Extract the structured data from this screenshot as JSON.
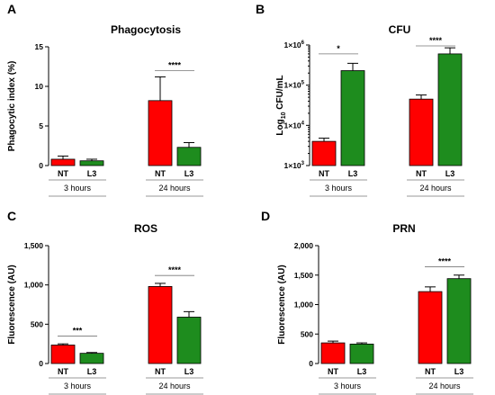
{
  "chart_data": [
    {
      "panel": "A",
      "type": "bar",
      "title": "Phagocytosis",
      "ylabel": "Phagocytic index (%)",
      "ylim": [
        0,
        15
      ],
      "yticks": [
        "0",
        "5",
        "10",
        "15"
      ],
      "ytick_values": [
        0,
        5,
        10,
        15
      ],
      "scale": "linear",
      "categories": [
        "NT",
        "L3",
        "NT",
        "L3"
      ],
      "groups": [
        "3 hours",
        "24 hours"
      ],
      "values": [
        0.8,
        0.6,
        8.2,
        2.3
      ],
      "errors": [
        0.4,
        0.2,
        3.0,
        0.6
      ],
      "colors": [
        "#ff0000",
        "#1e8c1e",
        "#ff0000",
        "#1e8c1e"
      ],
      "significance": [
        {
          "between": [
            2,
            3
          ],
          "label": "****",
          "y": 12.0
        }
      ]
    },
    {
      "panel": "B",
      "type": "bar",
      "title": "CFU",
      "ylabel_parts": [
        "Log",
        "10",
        " CFU/mL"
      ],
      "ylim": [
        1000,
        1000000
      ],
      "scale": "log",
      "ytick_values": [
        1000,
        10000,
        100000,
        1000000
      ],
      "yticks": [
        [
          "1×10",
          "3"
        ],
        [
          "1×10",
          "4"
        ],
        [
          "1×10",
          "5"
        ],
        [
          "1×10",
          "6"
        ]
      ],
      "categories": [
        "NT",
        "L3",
        "NT",
        "L3"
      ],
      "groups": [
        "3 hours",
        "24 hours"
      ],
      "values": [
        4000,
        230000,
        45000,
        600000
      ],
      "errors": [
        800,
        120000,
        12000,
        250000
      ],
      "colors": [
        "#ff0000",
        "#1e8c1e",
        "#ff0000",
        "#1e8c1e"
      ],
      "significance": [
        {
          "between": [
            0,
            1
          ],
          "label": "*",
          "y": 600000
        },
        {
          "between": [
            2,
            3
          ],
          "label": "****",
          "y": 950000
        }
      ]
    },
    {
      "panel": "C",
      "type": "bar",
      "title": "ROS",
      "ylabel": "Fluorescence (AU)",
      "ylim": [
        0,
        1500
      ],
      "yticks": [
        "0",
        "500",
        "1,000",
        "1,500"
      ],
      "ytick_values": [
        0,
        500,
        1000,
        1500
      ],
      "scale": "linear",
      "categories": [
        "NT",
        "L3",
        "NT",
        "L3"
      ],
      "groups": [
        "3 hours",
        "24 hours"
      ],
      "values": [
        235,
        130,
        980,
        590
      ],
      "errors": [
        15,
        10,
        40,
        70
      ],
      "colors": [
        "#ff0000",
        "#1e8c1e",
        "#ff0000",
        "#1e8c1e"
      ],
      "significance": [
        {
          "between": [
            0,
            1
          ],
          "label": "***",
          "y": 350
        },
        {
          "between": [
            2,
            3
          ],
          "label": "****",
          "y": 1120
        }
      ]
    },
    {
      "panel": "D",
      "type": "bar",
      "title": "PRN",
      "ylabel": "Fluorescence (AU)",
      "ylim": [
        0,
        2000
      ],
      "yticks": [
        "0",
        "500",
        "1,000",
        "1,500",
        "2,000"
      ],
      "ytick_values": [
        0,
        500,
        1000,
        1500,
        2000
      ],
      "scale": "linear",
      "categories": [
        "NT",
        "L3",
        "NT",
        "L3"
      ],
      "groups": [
        "3 hours",
        "24 hours"
      ],
      "values": [
        350,
        330,
        1220,
        1440
      ],
      "errors": [
        30,
        20,
        80,
        60
      ],
      "colors": [
        "#ff0000",
        "#1e8c1e",
        "#ff0000",
        "#1e8c1e"
      ],
      "significance": [
        {
          "between": [
            2,
            3
          ],
          "label": "****",
          "y": 1640
        }
      ]
    }
  ]
}
